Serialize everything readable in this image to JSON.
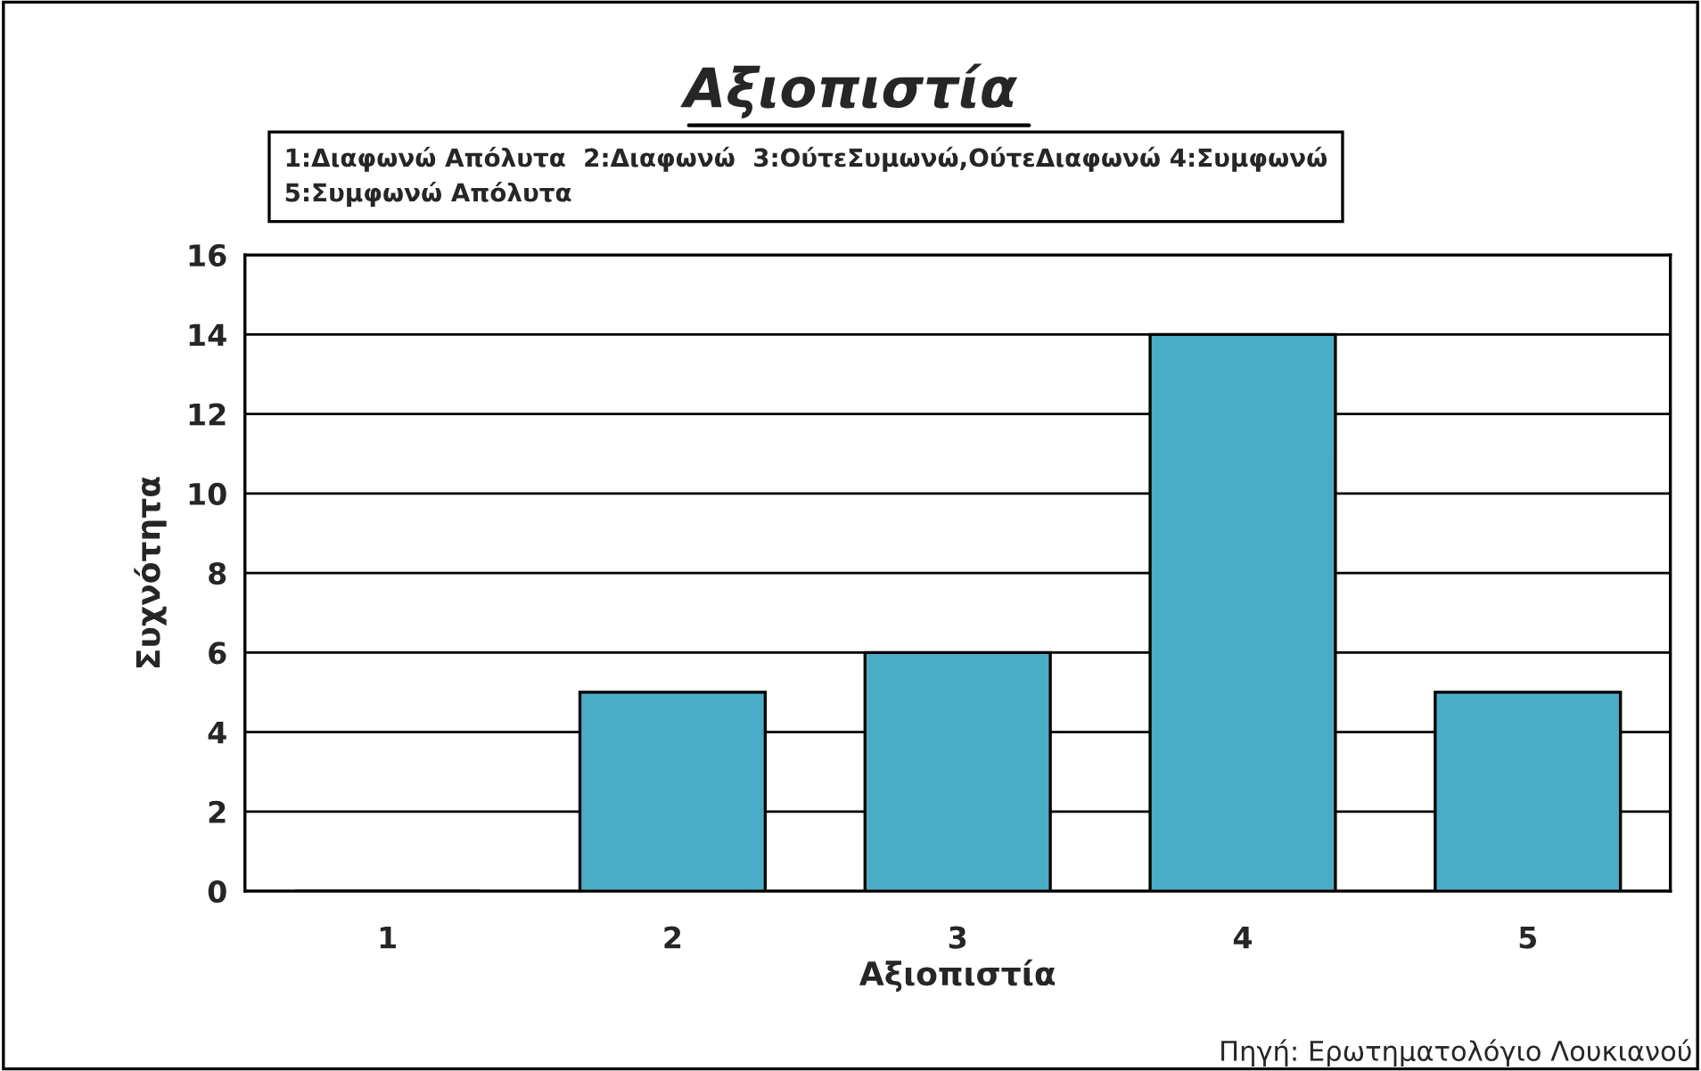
{
  "chart_data": {
    "type": "bar",
    "title": "Αξιοπιστία",
    "xlabel": "Αξιοπιστία",
    "ylabel": "Συχνότητα",
    "categories": [
      "1",
      "2",
      "3",
      "4",
      "5"
    ],
    "values": [
      0,
      5,
      6,
      14,
      5
    ],
    "color": "#4bacc6",
    "ylim": [
      0,
      16
    ],
    "yticks": [
      0,
      2,
      4,
      6,
      8,
      10,
      12,
      14,
      16
    ],
    "grid": "y",
    "annotations": [
      "1:Διαφωνώ Απόλυτα  2:Διαφωνώ  3:ΟύτεΣυμωνώ,ΟύτεΔιαφωνώ 4:Συμφωνώ\n5:Συμφωνώ Απόλυτα",
      "Πηγή: Ερωτηματολόγιο Λουκιανού"
    ]
  }
}
